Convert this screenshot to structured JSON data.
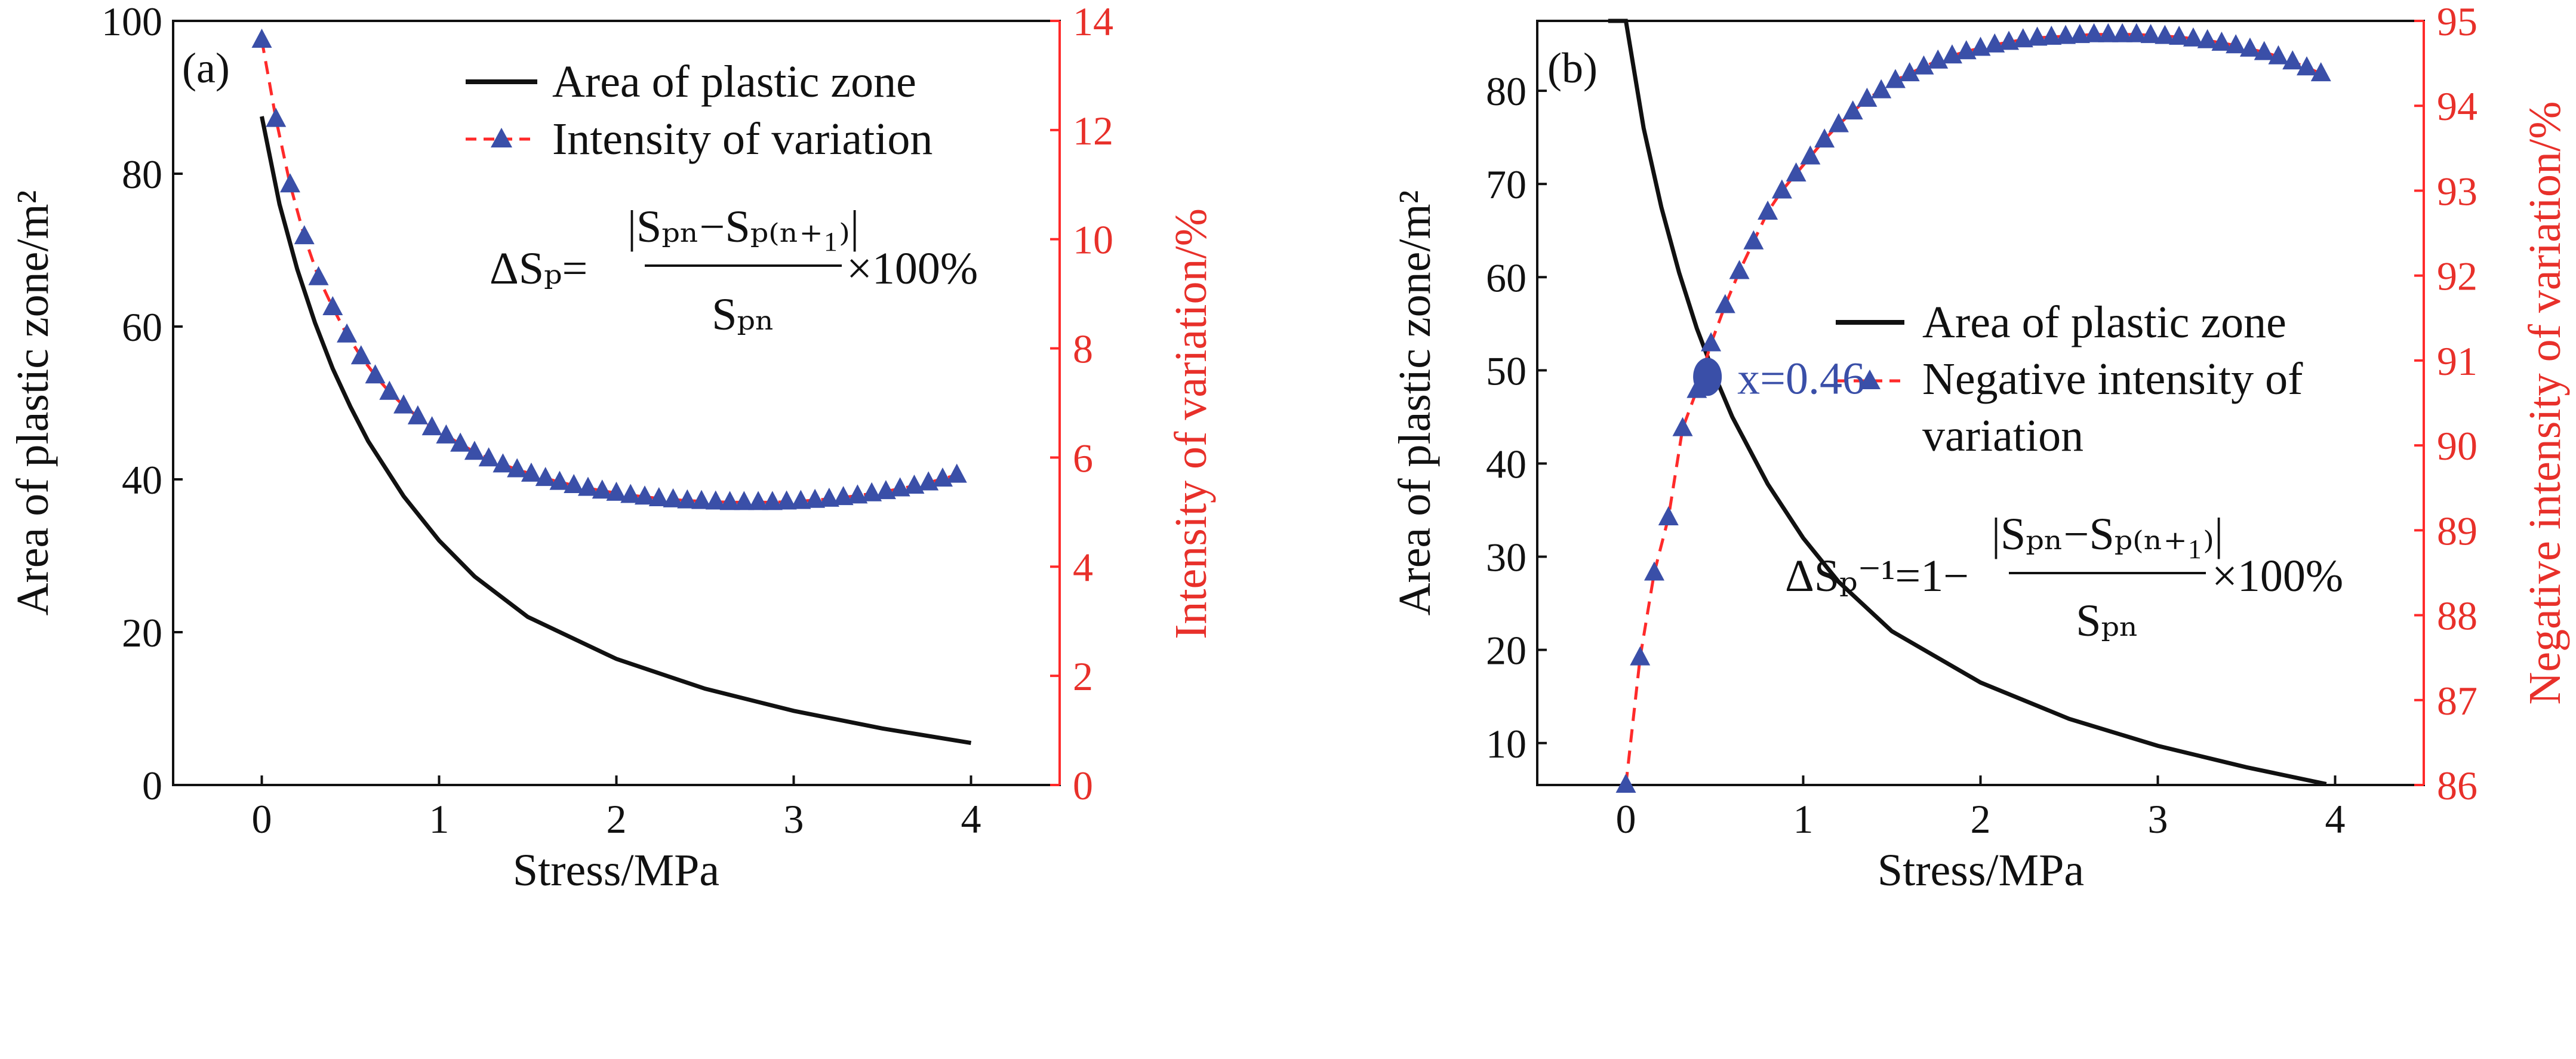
{
  "colors": {
    "curve": "#111111",
    "dashed": "#ff2a2a",
    "marker": "#3a4fa8",
    "secondary_axis": "#e8302a"
  },
  "chart_data": [
    {
      "type": "line",
      "panel_label": "(a)",
      "xlabel": "Stress/MPa",
      "ylabel": "Area of plastic zone/m²",
      "y2label": "Intensity of variation/%",
      "xlim": [
        -0.5,
        4.5
      ],
      "ylim": [
        0,
        100
      ],
      "y2lim": [
        0,
        14
      ],
      "x_ticks": [
        "0",
        "1",
        "2",
        "3",
        "4"
      ],
      "y_ticks": [
        "0",
        "20",
        "40",
        "60",
        "80",
        "100"
      ],
      "y2_ticks": [
        "0",
        "2",
        "4",
        "6",
        "8",
        "10",
        "12",
        "14"
      ],
      "legend": [
        "Area of plastic zone",
        "Intensity of variation"
      ],
      "legend_position": "top-right",
      "formula": {
        "lhs": "ΔSₚ=",
        "numerator": "|Sₚₙ−Sₚ₍ₙ₊₁₎|",
        "denominator": "Sₚₙ",
        "suffix": "×100%"
      },
      "series": [
        {
          "name": "Area of plastic zone",
          "axis": "left",
          "x": [
            0,
            0.1,
            0.2,
            0.3,
            0.4,
            0.5,
            0.6,
            0.8,
            1.0,
            1.2,
            1.5,
            2.0,
            2.5,
            3.0,
            3.5,
            4.0
          ],
          "values": [
            87.5,
            76.0,
            67.5,
            60.5,
            54.5,
            49.5,
            45.0,
            37.8,
            32.0,
            27.3,
            22.0,
            16.5,
            12.6,
            9.7,
            7.4,
            5.5
          ]
        },
        {
          "name": "Intensity of variation",
          "axis": "right",
          "x": [
            0,
            0.08,
            0.16,
            0.24,
            0.32,
            0.4,
            0.48,
            0.56,
            0.64,
            0.72,
            0.8,
            0.88,
            0.96,
            1.04,
            1.12,
            1.2,
            1.28,
            1.36,
            1.44,
            1.52,
            1.6,
            1.68,
            1.76,
            1.84,
            1.92,
            2.0,
            2.08,
            2.16,
            2.24,
            2.32,
            2.4,
            2.48,
            2.56,
            2.64,
            2.72,
            2.8,
            2.88,
            2.96,
            3.04,
            3.12,
            3.2,
            3.28,
            3.36,
            3.44,
            3.52,
            3.6,
            3.68,
            3.76,
            3.84,
            3.92
          ],
          "values": [
            13.65,
            12.2,
            11.0,
            10.05,
            9.3,
            8.75,
            8.25,
            7.85,
            7.5,
            7.2,
            6.95,
            6.75,
            6.55,
            6.4,
            6.25,
            6.1,
            5.98,
            5.87,
            5.78,
            5.7,
            5.62,
            5.55,
            5.49,
            5.44,
            5.39,
            5.35,
            5.31,
            5.28,
            5.25,
            5.23,
            5.21,
            5.2,
            5.19,
            5.18,
            5.18,
            5.18,
            5.18,
            5.19,
            5.2,
            5.22,
            5.24,
            5.27,
            5.3,
            5.34,
            5.38,
            5.43,
            5.48,
            5.54,
            5.61,
            5.68
          ]
        }
      ]
    },
    {
      "type": "line",
      "panel_label": "(b)",
      "xlabel": "Stress/MPa",
      "ylabel": "Area of plastic zone/m²",
      "y2label": "Negative intensity of variation/%",
      "xlim": [
        -0.5,
        4.5
      ],
      "ylim": [
        5.5,
        87.5
      ],
      "y2lim": [
        86,
        95
      ],
      "x_ticks": [
        "0",
        "1",
        "2",
        "3",
        "4"
      ],
      "y_ticks": [
        "10",
        "20",
        "30",
        "40",
        "50",
        "60",
        "70",
        "80"
      ],
      "y2_ticks": [
        "86",
        "87",
        "88",
        "89",
        "90",
        "91",
        "92",
        "93",
        "94",
        "95"
      ],
      "legend": [
        "Area of plastic zone",
        "Negative intensity of",
        "variation"
      ],
      "legend_position": "center-right",
      "intersection": {
        "label": "x=0.46",
        "x": 0.46,
        "y": 49.3
      },
      "formula": {
        "lhs": "ΔSₚ⁻¹=1−",
        "numerator": "|Sₚₙ−Sₚ₍ₙ₊₁₎|",
        "denominator": "Sₚₙ",
        "suffix": "×100%"
      },
      "series": [
        {
          "name": "Area of plastic zone",
          "axis": "left",
          "x": [
            -0.1,
            0.0,
            0.1,
            0.2,
            0.3,
            0.4,
            0.5,
            0.6,
            0.8,
            1.0,
            1.2,
            1.5,
            2.0,
            2.5,
            3.0,
            3.5,
            3.95
          ],
          "values": [
            88.0,
            87.5,
            76.0,
            67.5,
            60.5,
            54.5,
            49.5,
            45.0,
            37.8,
            32.0,
            27.3,
            22.0,
            16.5,
            12.6,
            9.7,
            7.4,
            5.6
          ]
        },
        {
          "name": "Negative intensity of variation",
          "axis": "right",
          "x": [
            0,
            0.08,
            0.16,
            0.24,
            0.32,
            0.4,
            0.48,
            0.56,
            0.64,
            0.72,
            0.8,
            0.88,
            0.96,
            1.04,
            1.12,
            1.2,
            1.28,
            1.36,
            1.44,
            1.52,
            1.6,
            1.68,
            1.76,
            1.84,
            1.92,
            2.0,
            2.08,
            2.16,
            2.24,
            2.32,
            2.4,
            2.48,
            2.56,
            2.64,
            2.72,
            2.8,
            2.88,
            2.96,
            3.04,
            3.12,
            3.2,
            3.28,
            3.36,
            3.44,
            3.52,
            3.6,
            3.68,
            3.76,
            3.84,
            3.92
          ],
          "values": [
            86.0,
            87.5,
            88.5,
            89.15,
            90.2,
            90.65,
            91.2,
            91.65,
            92.05,
            92.4,
            92.75,
            93.0,
            93.2,
            93.4,
            93.6,
            93.78,
            93.93,
            94.08,
            94.18,
            94.3,
            94.38,
            94.46,
            94.53,
            94.59,
            94.64,
            94.68,
            94.72,
            94.75,
            94.78,
            94.8,
            94.81,
            94.82,
            94.83,
            94.84,
            94.84,
            94.84,
            94.84,
            94.83,
            94.82,
            94.81,
            94.79,
            94.77,
            94.74,
            94.71,
            94.67,
            94.63,
            94.58,
            94.52,
            94.45,
            94.38
          ]
        }
      ]
    }
  ]
}
